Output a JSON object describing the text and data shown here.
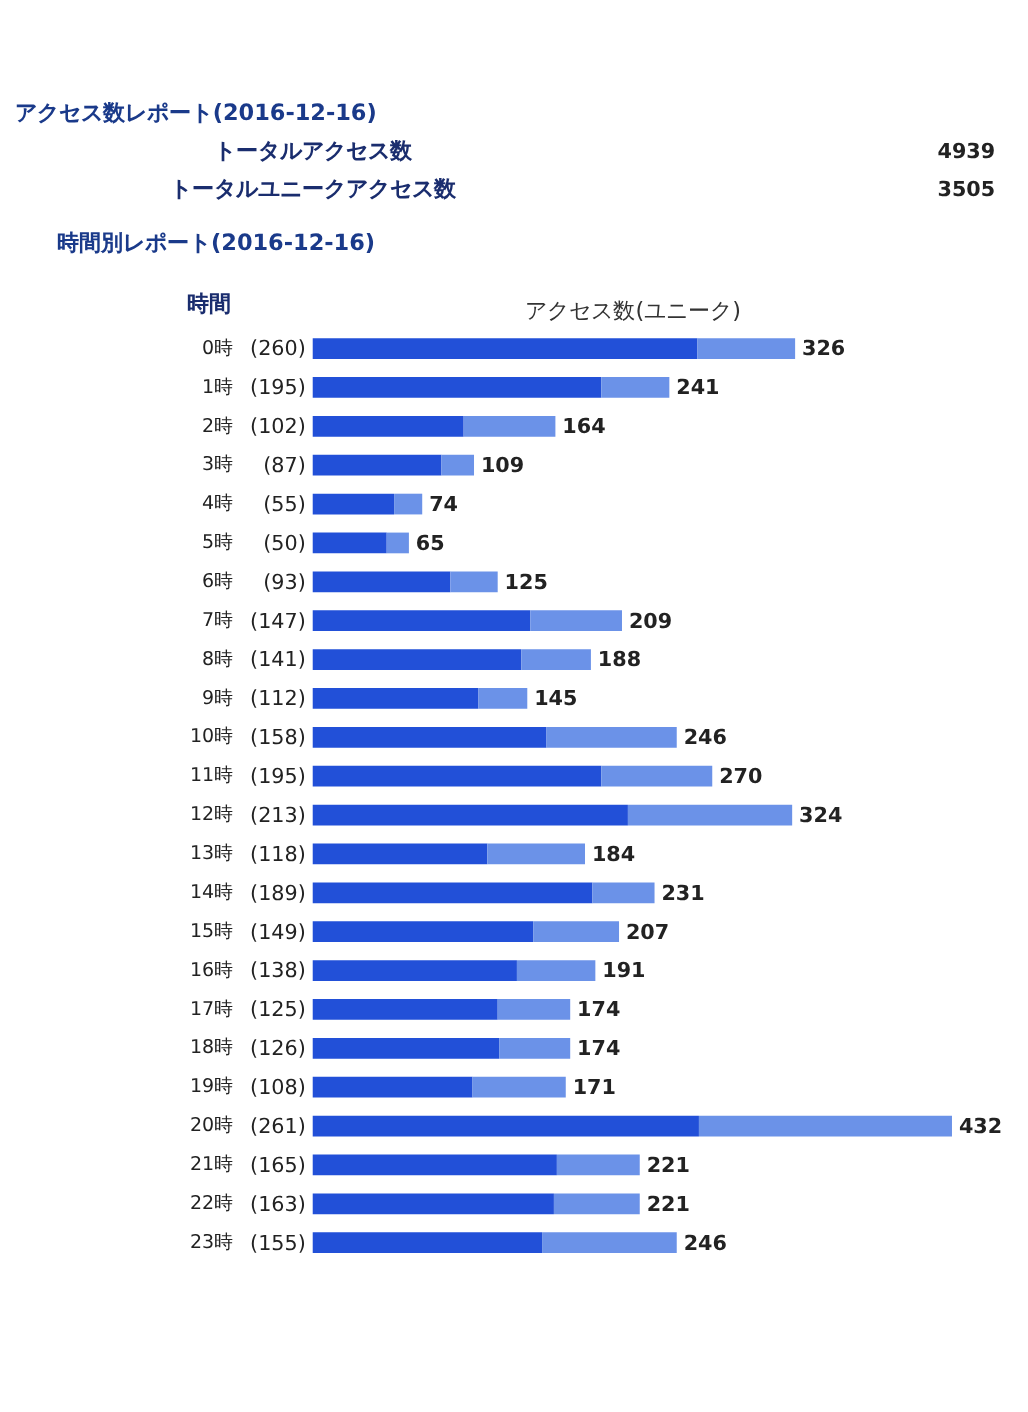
{
  "chart_data": {
    "type": "bar",
    "orientation": "horizontal",
    "title": "アクセス数レポート(2016-12-16)",
    "subtitle": "時間別レポート(2016-12-16)",
    "xlabel": "アクセス数(ユニーク)",
    "ylabel": "時間",
    "annotations": [
      "トータルアクセス数",
      "4939",
      "トータルユニークアクセス数",
      "3505"
    ],
    "categories": [
      "0時",
      "1時",
      "2時",
      "3時",
      "4時",
      "5時",
      "6時",
      "7時",
      "8時",
      "9時",
      "10時",
      "11時",
      "12時",
      "13時",
      "14時",
      "15時",
      "16時",
      "17時",
      "18時",
      "19時",
      "20時",
      "21時",
      "22時",
      "23時"
    ],
    "stacked": true,
    "series": [
      {
        "color": "#2250d8",
        "values": [
          260,
          195,
          102,
          87,
          55,
          50,
          93,
          147,
          141,
          112,
          158,
          195,
          213,
          118,
          189,
          149,
          138,
          125,
          126,
          108,
          261,
          165,
          163,
          155
        ],
        "value_labels": [
          "(260)",
          "(195)",
          "(102)",
          "(87)",
          "(55)",
          "(50)",
          "(93)",
          "(147)",
          "(141)",
          "(112)",
          "(158)",
          "(195)",
          "(213)",
          "(118)",
          "(189)",
          "(149)",
          "(138)",
          "(125)",
          "(126)",
          "(108)",
          "(261)",
          "(165)",
          "(163)",
          "(155)"
        ]
      },
      {
        "color": "#6b92e8",
        "values": [
          66,
          46,
          62,
          22,
          19,
          15,
          32,
          62,
          47,
          33,
          88,
          75,
          111,
          66,
          42,
          58,
          53,
          49,
          48,
          63,
          171,
          56,
          58,
          91
        ]
      }
    ],
    "totals": [
      "326",
      "241",
      "164",
      "109",
      "74",
      "65",
      "125",
      "209",
      "188",
      "145",
      "246",
      "270",
      "324",
      "184",
      "231",
      "207",
      "191",
      "174",
      "174",
      "171",
      "432",
      "221",
      "221",
      "246"
    ],
    "grid": false,
    "tick_labels": "y"
  }
}
